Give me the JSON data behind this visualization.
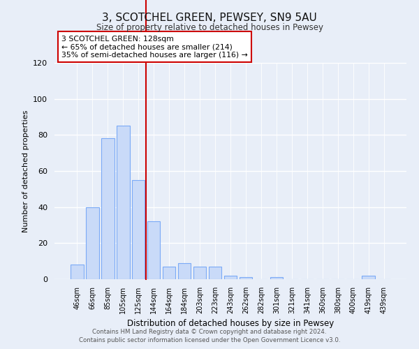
{
  "title": "3, SCOTCHEL GREEN, PEWSEY, SN9 5AU",
  "subtitle": "Size of property relative to detached houses in Pewsey",
  "xlabel": "Distribution of detached houses by size in Pewsey",
  "ylabel": "Number of detached properties",
  "categories": [
    "46sqm",
    "66sqm",
    "85sqm",
    "105sqm",
    "125sqm",
    "144sqm",
    "164sqm",
    "184sqm",
    "203sqm",
    "223sqm",
    "243sqm",
    "262sqm",
    "282sqm",
    "301sqm",
    "321sqm",
    "341sqm",
    "360sqm",
    "380sqm",
    "400sqm",
    "419sqm",
    "439sqm"
  ],
  "values": [
    8,
    40,
    78,
    85,
    55,
    32,
    7,
    9,
    7,
    7,
    2,
    1,
    0,
    1,
    0,
    0,
    0,
    0,
    0,
    2,
    0
  ],
  "bar_color": "#c9daf8",
  "bar_edge_color": "#7baaf7",
  "ylim": [
    0,
    120
  ],
  "yticks": [
    0,
    20,
    40,
    60,
    80,
    100,
    120
  ],
  "vline_x_index": 4,
  "vline_color": "#cc0000",
  "annotation_text": "3 SCOTCHEL GREEN: 128sqm\n← 65% of detached houses are smaller (214)\n35% of semi-detached houses are larger (116) →",
  "annotation_box_color": "#ffffff",
  "annotation_box_edge": "#cc0000",
  "background_color": "#e8eef8",
  "footer_line1": "Contains HM Land Registry data © Crown copyright and database right 2024.",
  "footer_line2": "Contains public sector information licensed under the Open Government Licence v3.0."
}
